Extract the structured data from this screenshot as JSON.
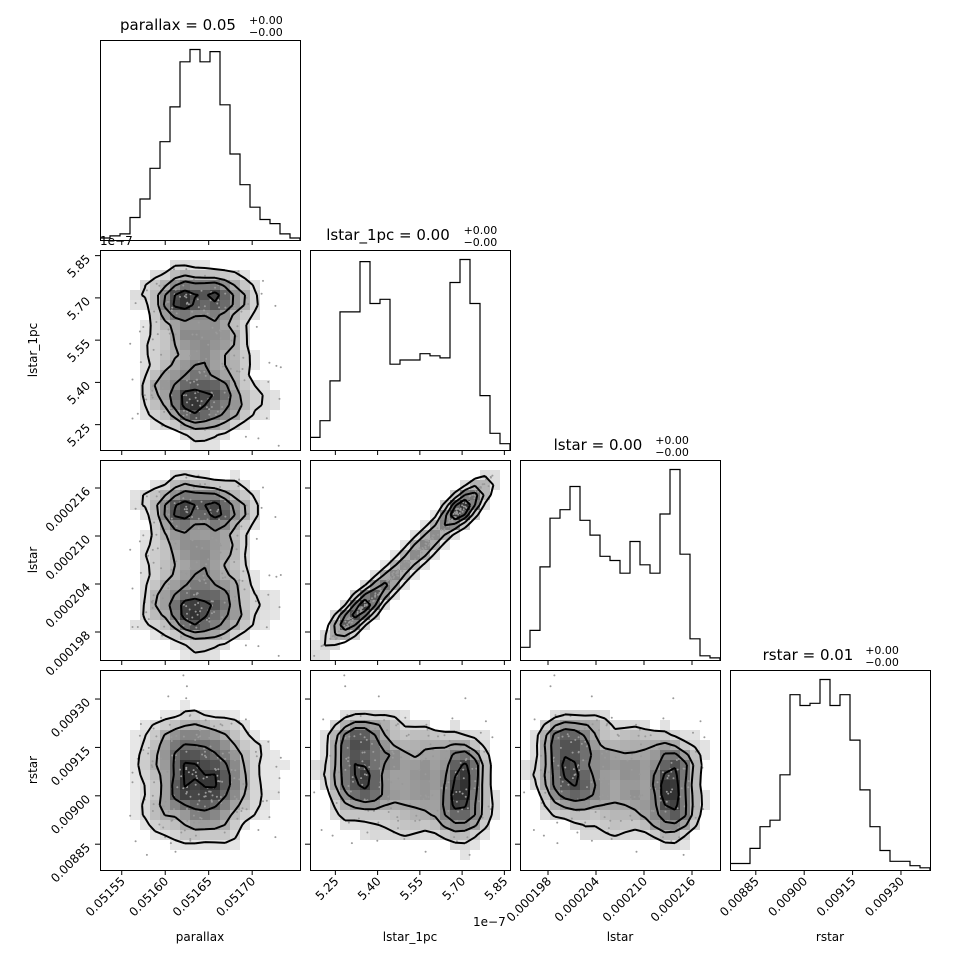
{
  "chart_data": {
    "type": "corner",
    "parameters": [
      "parallax",
      "lstar_1pc",
      "lstar",
      "rstar"
    ],
    "diagonal_titles": [
      {
        "name": "parallax",
        "value": "0.05",
        "plus": "+0.00",
        "minus": "−0.00"
      },
      {
        "name": "lstar_1pc",
        "value": "0.00",
        "plus": "+0.00",
        "minus": "−0.00"
      },
      {
        "name": "lstar",
        "value": "0.00",
        "plus": "+0.00",
        "minus": "−0.00"
      },
      {
        "name": "rstar",
        "value": "0.01",
        "plus": "+0.00",
        "minus": "−0.00"
      }
    ],
    "axes": {
      "parallax": {
        "range": [
          0.051525,
          0.051755
        ],
        "ticks": [
          0.05155,
          0.0516,
          0.05165,
          0.0517
        ],
        "tick_labels": [
          "0.05155",
          "0.05160",
          "0.05165",
          "0.05170"
        ],
        "offset": ""
      },
      "lstar_1pc": {
        "range": [
          5.16,
          5.87
        ],
        "ticks": [
          5.25,
          5.4,
          5.55,
          5.7,
          5.85
        ],
        "tick_labels": [
          "5.25",
          "5.40",
          "5.55",
          "5.70",
          "5.85"
        ],
        "offset": "1e−7"
      },
      "lstar": {
        "range": [
          0.0001945,
          0.0002195
        ],
        "ticks": [
          0.000198,
          0.000204,
          0.00021,
          0.000216
        ],
        "tick_labels": [
          "0.000198",
          "0.000204",
          "0.000210",
          "0.000216"
        ],
        "offset": ""
      },
      "rstar": {
        "range": [
          0.00877,
          0.00939
        ],
        "ticks": [
          0.00885,
          0.009,
          0.00915,
          0.0093
        ],
        "tick_labels": [
          "0.00885",
          "0.00900",
          "0.00915",
          "0.00930"
        ],
        "offset": ""
      }
    },
    "histograms": [
      {
        "param": "parallax",
        "edges_start": 0.051525,
        "bin_width": 1.15e-05,
        "counts": [
          1,
          2,
          3,
          11,
          20,
          35,
          48,
          65,
          87,
          93,
          87,
          92,
          66,
          42,
          27,
          16,
          10,
          8,
          3,
          1
        ]
      },
      {
        "param": "lstar_1pc",
        "edges_start": 5.16,
        "bin_width": 0.0355,
        "counts": [
          6,
          14,
          33,
          66,
          66,
          90,
          70,
          72,
          41,
          43,
          43,
          46,
          45,
          44,
          80,
          91,
          70,
          26,
          8,
          3
        ]
      },
      {
        "param": "lstar",
        "edges_start": 0.0001945,
        "bin_width": 1.25e-06,
        "counts": [
          6,
          14,
          44,
          67,
          71,
          82,
          66,
          59,
          49,
          47,
          41,
          56,
          45,
          41,
          69,
          90,
          50,
          10,
          2,
          1
        ]
      },
      {
        "param": "rstar",
        "edges_start": 0.00877,
        "bin_width": 3.1e-05,
        "counts": [
          3,
          3,
          10,
          20,
          23,
          44,
          81,
          76,
          77,
          88,
          76,
          81,
          60,
          37,
          20,
          9,
          4,
          4,
          2,
          1
        ]
      }
    ],
    "density_levels": [
      0.118,
      0.393,
      0.675,
      0.864
    ],
    "grid": false,
    "legend": "none"
  }
}
